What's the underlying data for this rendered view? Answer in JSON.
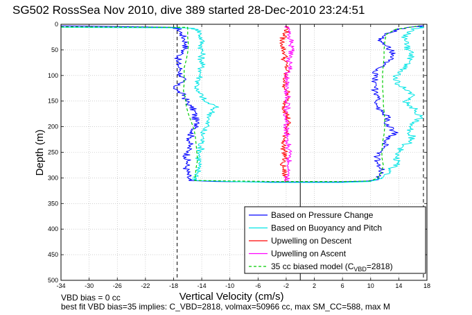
{
  "chart_data": {
    "type": "line",
    "title": "SG502 RossSea Nov 2010, dive 389 started 28-Dec-2010 23:24:51",
    "xlabel": "Vertical Velocity (cm/s)",
    "ylabel": "Depth (m)",
    "xlim": [
      -34,
      18
    ],
    "ylim": [
      0,
      500
    ],
    "y_reversed": true,
    "grid": true,
    "xticks": [
      -34,
      -30,
      -26,
      -22,
      -18,
      -14,
      -10,
      -6,
      -2,
      2,
      6,
      10,
      14,
      18
    ],
    "yticks": [
      0,
      50,
      100,
      150,
      200,
      250,
      300,
      350,
      400,
      450,
      500
    ],
    "xtick_labels": [
      "-34",
      "-30",
      "-26",
      "-22",
      "-18",
      "-14",
      "-10",
      "-6",
      "-2",
      "2",
      "6",
      "10",
      "14",
      "18"
    ],
    "ytick_labels": [
      "0",
      "50",
      "100",
      "150",
      "200",
      "250",
      "300",
      "350",
      "400",
      "450",
      "500"
    ],
    "legend_position": "bottom-right",
    "reference_lines": {
      "vertical_solid_x": 0,
      "vertical_dashed_x": [
        -17.5,
        17.5
      ]
    },
    "series": [
      {
        "name": "Based on Pressure Change",
        "color": "#0000ff",
        "style": "solid",
        "descent": [
          [
            -34,
            3
          ],
          [
            -18,
            6
          ],
          [
            -17.2,
            10
          ],
          [
            -16.8,
            20
          ],
          [
            -16.4,
            30
          ],
          [
            -16.2,
            40
          ],
          [
            -16.5,
            50
          ],
          [
            -17,
            60
          ],
          [
            -17.5,
            70
          ],
          [
            -17.3,
            80
          ],
          [
            -17,
            90
          ],
          [
            -17,
            100
          ],
          [
            -16.6,
            110
          ],
          [
            -17.8,
            120
          ],
          [
            -17.5,
            130
          ],
          [
            -16.4,
            140
          ],
          [
            -16.2,
            150
          ],
          [
            -15.6,
            160
          ],
          [
            -15,
            170
          ],
          [
            -15,
            180
          ],
          [
            -14.8,
            190
          ],
          [
            -14.5,
            200
          ],
          [
            -15.4,
            210
          ],
          [
            -15.6,
            220
          ],
          [
            -15.7,
            230
          ],
          [
            -15.8,
            240
          ],
          [
            -15.9,
            250
          ],
          [
            -16.2,
            260
          ],
          [
            -16,
            270
          ],
          [
            -16.2,
            280
          ],
          [
            -16,
            290
          ],
          [
            -15.9,
            300
          ],
          [
            -15.8,
            305
          ],
          [
            -12,
            307
          ],
          [
            -6,
            308
          ],
          [
            0,
            308
          ]
        ],
        "ascent": [
          [
            0,
            308
          ],
          [
            5,
            308
          ],
          [
            10,
            306
          ],
          [
            11,
            302
          ],
          [
            11.8,
            290
          ],
          [
            11.3,
            280
          ],
          [
            11,
            270
          ],
          [
            10.8,
            260
          ],
          [
            11.5,
            250
          ],
          [
            12,
            240
          ],
          [
            12.2,
            230
          ],
          [
            12.8,
            220
          ],
          [
            13.5,
            210
          ],
          [
            12.5,
            200
          ],
          [
            12,
            190
          ],
          [
            12.5,
            180
          ],
          [
            11.5,
            170
          ],
          [
            11,
            160
          ],
          [
            10.8,
            150
          ],
          [
            11,
            140
          ],
          [
            10.5,
            130
          ],
          [
            10.8,
            120
          ],
          [
            10.6,
            110
          ],
          [
            10.5,
            100
          ],
          [
            11,
            90
          ],
          [
            11.8,
            80
          ],
          [
            12.5,
            70
          ],
          [
            13.2,
            60
          ],
          [
            12.8,
            50
          ],
          [
            12,
            40
          ],
          [
            11.5,
            30
          ],
          [
            12,
            20
          ],
          [
            14,
            10
          ],
          [
            16,
            5
          ],
          [
            17.5,
            3
          ]
        ]
      },
      {
        "name": "Based on Buoyancy and Pitch",
        "color": "#00e5e5",
        "style": "solid",
        "descent": [
          [
            -34,
            6
          ],
          [
            -16,
            7
          ],
          [
            -14.5,
            10
          ],
          [
            -14.2,
            20
          ],
          [
            -14,
            30
          ],
          [
            -14,
            40
          ],
          [
            -14,
            50
          ],
          [
            -14,
            60
          ],
          [
            -14,
            70
          ],
          [
            -14,
            80
          ],
          [
            -14.1,
            90
          ],
          [
            -14.2,
            100
          ],
          [
            -14.4,
            110
          ],
          [
            -14.6,
            120
          ],
          [
            -14.8,
            130
          ],
          [
            -13.9,
            140
          ],
          [
            -13.7,
            150
          ],
          [
            -12,
            160
          ],
          [
            -12.5,
            170
          ],
          [
            -12.8,
            180
          ],
          [
            -13.3,
            190
          ],
          [
            -13.2,
            200
          ],
          [
            -14,
            210
          ],
          [
            -13.8,
            220
          ],
          [
            -14,
            230
          ],
          [
            -14.1,
            240
          ],
          [
            -14.2,
            250
          ],
          [
            -14.4,
            260
          ],
          [
            -14.3,
            270
          ],
          [
            -14.6,
            280
          ],
          [
            -14.5,
            290
          ],
          [
            -14.8,
            300
          ],
          [
            -14.9,
            305
          ],
          [
            -10,
            307
          ],
          [
            -4,
            309
          ],
          [
            0,
            309
          ]
        ],
        "ascent": [
          [
            0,
            309
          ],
          [
            6,
            309
          ],
          [
            10,
            307
          ],
          [
            11.5,
            300
          ],
          [
            12.8,
            290
          ],
          [
            13,
            280
          ],
          [
            14,
            270
          ],
          [
            13.5,
            260
          ],
          [
            14,
            250
          ],
          [
            14.5,
            240
          ],
          [
            15.5,
            230
          ],
          [
            16,
            220
          ],
          [
            15.6,
            210
          ],
          [
            15.5,
            200
          ],
          [
            16.6,
            190
          ],
          [
            17,
            180
          ],
          [
            16.5,
            170
          ],
          [
            15.8,
            160
          ],
          [
            14.8,
            150
          ],
          [
            16,
            140
          ],
          [
            15.5,
            130
          ],
          [
            14,
            120
          ],
          [
            13.8,
            110
          ],
          [
            13.5,
            100
          ],
          [
            14.5,
            90
          ],
          [
            15.2,
            80
          ],
          [
            15.6,
            70
          ],
          [
            16,
            60
          ],
          [
            15.4,
            50
          ],
          [
            15,
            40
          ],
          [
            14.8,
            30
          ],
          [
            15,
            20
          ],
          [
            16,
            10
          ],
          [
            17.5,
            5
          ]
        ]
      },
      {
        "name": "Upwelling on Descent",
        "color": "#ff0000",
        "style": "solid",
        "points": [
          [
            -2,
            3
          ],
          [
            -1.8,
            10
          ],
          [
            -2.2,
            20
          ],
          [
            -2.6,
            30
          ],
          [
            -2.5,
            40
          ],
          [
            -2.4,
            50
          ],
          [
            -2.1,
            60
          ],
          [
            -2.3,
            70
          ],
          [
            -2,
            80
          ],
          [
            -1.9,
            90
          ],
          [
            -2.2,
            100
          ],
          [
            -2.2,
            110
          ],
          [
            -2.2,
            120
          ],
          [
            -1.9,
            130
          ],
          [
            -1.8,
            140
          ],
          [
            -2,
            150
          ],
          [
            -2.2,
            160
          ],
          [
            -2.1,
            170
          ],
          [
            -1.8,
            180
          ],
          [
            -1.7,
            190
          ],
          [
            -1.9,
            200
          ],
          [
            -2,
            210
          ],
          [
            -2.1,
            220
          ],
          [
            -2.3,
            230
          ],
          [
            -2.4,
            240
          ],
          [
            -2.2,
            250
          ],
          [
            -2.1,
            260
          ],
          [
            -2.6,
            270
          ],
          [
            -2.4,
            280
          ],
          [
            -2.3,
            290
          ],
          [
            -2.1,
            300
          ],
          [
            -2,
            308
          ]
        ]
      },
      {
        "name": "Upwelling on Ascent",
        "color": "#ff00ff",
        "style": "solid",
        "points": [
          [
            -1.8,
            308
          ],
          [
            -1.9,
            300
          ],
          [
            -1.6,
            290
          ],
          [
            -1.8,
            280
          ],
          [
            -1.6,
            270
          ],
          [
            -1.5,
            260
          ],
          [
            -1.6,
            250
          ],
          [
            -1.7,
            240
          ],
          [
            -1.8,
            230
          ],
          [
            -1.9,
            220
          ],
          [
            -1.8,
            210
          ],
          [
            -2,
            200
          ],
          [
            -2.1,
            190
          ],
          [
            -2,
            180
          ],
          [
            -1.9,
            170
          ],
          [
            -1.8,
            160
          ],
          [
            -1.9,
            150
          ],
          [
            -1.8,
            140
          ],
          [
            -1.9,
            130
          ],
          [
            -2.1,
            120
          ],
          [
            -1.9,
            110
          ],
          [
            -1.8,
            100
          ],
          [
            -1.6,
            90
          ],
          [
            -1.5,
            80
          ],
          [
            -1.6,
            70
          ],
          [
            -1.4,
            60
          ],
          [
            -1.2,
            50
          ],
          [
            -1.4,
            40
          ],
          [
            -1.3,
            30
          ],
          [
            -1.8,
            20
          ],
          [
            -1.5,
            10
          ],
          [
            -2,
            3
          ]
        ]
      },
      {
        "name": "35 cc biased model (C_VBD=2818)",
        "color": "#00cc00",
        "style": "dashed",
        "descent": [
          [
            -34,
            5
          ],
          [
            -16,
            6
          ],
          [
            -16,
            10
          ],
          [
            -16,
            25
          ],
          [
            -15.9,
            40
          ],
          [
            -16,
            55
          ],
          [
            -16.2,
            70
          ],
          [
            -16.5,
            85
          ],
          [
            -16.5,
            100
          ],
          [
            -16.5,
            115
          ],
          [
            -16.6,
            130
          ],
          [
            -16.3,
            145
          ],
          [
            -16.2,
            160
          ],
          [
            -15.9,
            175
          ],
          [
            -15.5,
            190
          ],
          [
            -15.1,
            205
          ],
          [
            -14.9,
            220
          ],
          [
            -14.8,
            235
          ],
          [
            -14.7,
            250
          ],
          [
            -14.6,
            265
          ],
          [
            -14.8,
            280
          ],
          [
            -14.9,
            295
          ],
          [
            -15,
            305
          ],
          [
            -10,
            306
          ],
          [
            -4,
            307
          ],
          [
            0,
            307
          ]
        ],
        "ascent": [
          [
            0,
            307
          ],
          [
            6,
            307
          ],
          [
            10,
            306
          ],
          [
            11,
            300
          ],
          [
            11.5,
            290
          ],
          [
            11.8,
            275
          ],
          [
            11.6,
            260
          ],
          [
            11.6,
            245
          ],
          [
            11.7,
            230
          ],
          [
            11.9,
            215
          ],
          [
            12,
            200
          ],
          [
            12,
            185
          ],
          [
            11.9,
            170
          ],
          [
            11.8,
            155
          ],
          [
            11.8,
            140
          ],
          [
            11.7,
            125
          ],
          [
            11.7,
            110
          ],
          [
            11.7,
            95
          ],
          [
            11.8,
            80
          ],
          [
            11.9,
            65
          ],
          [
            11.9,
            50
          ],
          [
            12,
            35
          ],
          [
            12.2,
            20
          ],
          [
            13.5,
            10
          ],
          [
            16,
            5
          ],
          [
            17,
            3
          ]
        ]
      }
    ],
    "legend": [
      {
        "label_main": "Based on Pressure Change",
        "label_sub": "",
        "label_tail": "",
        "color": "#0000ff",
        "style": "solid"
      },
      {
        "label_main": "Based on Buoyancy and Pitch",
        "label_sub": "",
        "label_tail": "",
        "color": "#00e5e5",
        "style": "solid"
      },
      {
        "label_main": "Upwelling on Descent",
        "label_sub": "",
        "label_tail": "",
        "color": "#ff0000",
        "style": "solid"
      },
      {
        "label_main": "Upwelling on Ascent",
        "label_sub": "",
        "label_tail": "",
        "color": "#ff00ff",
        "style": "solid"
      },
      {
        "label_main": "35 cc biased model (C",
        "label_sub": "VBD",
        "label_tail": "=2818)",
        "color": "#00cc00",
        "style": "dashed"
      }
    ],
    "annotations": [
      "VBD bias = 0 cc",
      "best fit VBD bias=35 implies: C_VBD=2818, volmax=50966 cc, max SM_CC=588, max M"
    ]
  }
}
